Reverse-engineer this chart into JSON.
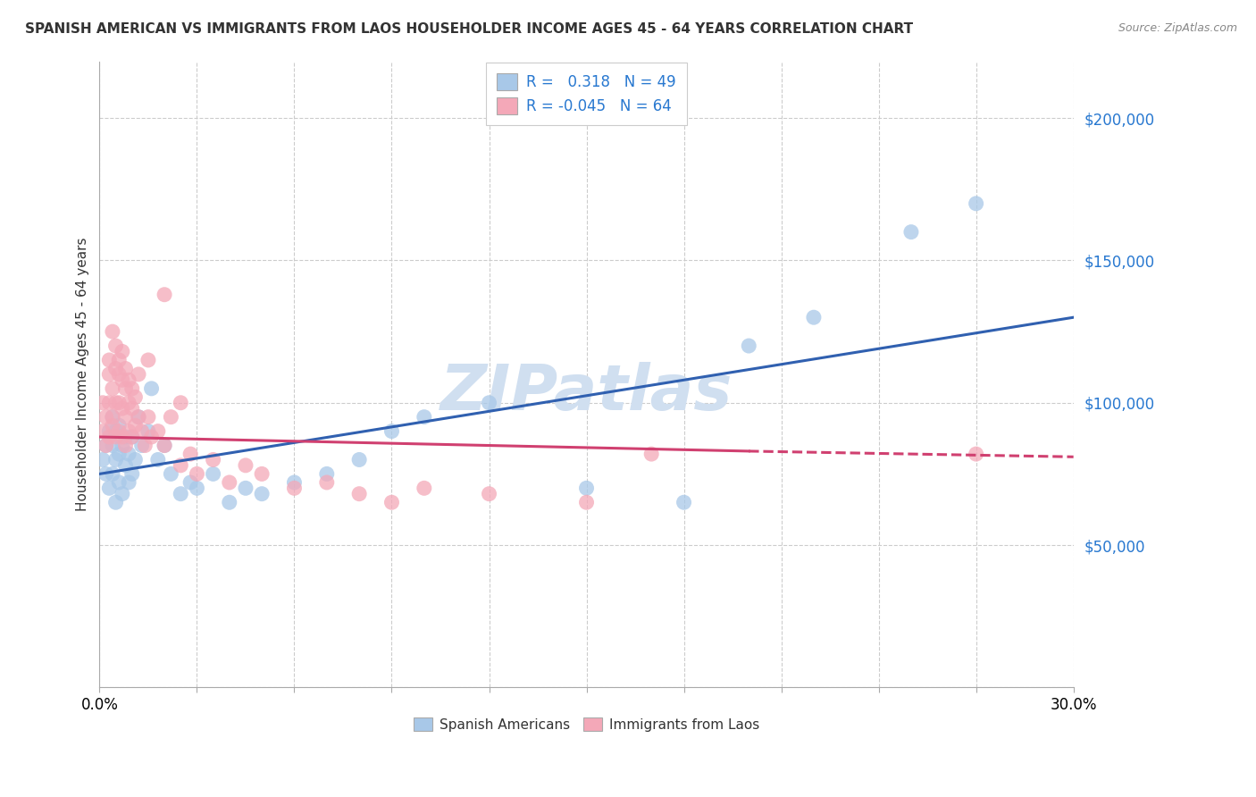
{
  "title": "SPANISH AMERICAN VS IMMIGRANTS FROM LAOS HOUSEHOLDER INCOME AGES 45 - 64 YEARS CORRELATION CHART",
  "source_text": "Source: ZipAtlas.com",
  "ylabel": "Householder Income Ages 45 - 64 years",
  "xlim": [
    0.0,
    0.3
  ],
  "ylim": [
    0,
    220000
  ],
  "yticks": [
    0,
    50000,
    100000,
    150000,
    200000
  ],
  "blue_R": 0.318,
  "blue_N": 49,
  "pink_R": -0.045,
  "pink_N": 64,
  "blue_color": "#a8c8e8",
  "pink_color": "#f4a8b8",
  "blue_line_color": "#3060b0",
  "pink_line_color": "#d04070",
  "watermark_color": "#d0dff0",
  "blue_scatter_x": [
    0.001,
    0.002,
    0.002,
    0.003,
    0.003,
    0.004,
    0.004,
    0.004,
    0.005,
    0.005,
    0.005,
    0.006,
    0.006,
    0.006,
    0.007,
    0.007,
    0.008,
    0.008,
    0.009,
    0.009,
    0.01,
    0.01,
    0.011,
    0.012,
    0.013,
    0.015,
    0.016,
    0.018,
    0.02,
    0.022,
    0.025,
    0.028,
    0.03,
    0.035,
    0.04,
    0.045,
    0.05,
    0.06,
    0.07,
    0.08,
    0.09,
    0.1,
    0.12,
    0.15,
    0.18,
    0.2,
    0.22,
    0.25,
    0.27
  ],
  "blue_scatter_y": [
    80000,
    75000,
    85000,
    70000,
    90000,
    75000,
    85000,
    95000,
    65000,
    80000,
    90000,
    72000,
    82000,
    92000,
    68000,
    85000,
    78000,
    88000,
    72000,
    82000,
    75000,
    88000,
    80000,
    95000,
    85000,
    90000,
    105000,
    80000,
    85000,
    75000,
    68000,
    72000,
    70000,
    75000,
    65000,
    70000,
    68000,
    72000,
    75000,
    80000,
    90000,
    95000,
    100000,
    70000,
    65000,
    120000,
    130000,
    160000,
    170000
  ],
  "pink_scatter_x": [
    0.001,
    0.001,
    0.002,
    0.002,
    0.003,
    0.003,
    0.003,
    0.004,
    0.004,
    0.004,
    0.005,
    0.005,
    0.005,
    0.006,
    0.006,
    0.006,
    0.007,
    0.007,
    0.007,
    0.008,
    0.008,
    0.008,
    0.009,
    0.009,
    0.01,
    0.01,
    0.011,
    0.011,
    0.012,
    0.013,
    0.014,
    0.015,
    0.016,
    0.018,
    0.02,
    0.022,
    0.025,
    0.028,
    0.03,
    0.035,
    0.04,
    0.045,
    0.05,
    0.06,
    0.07,
    0.08,
    0.09,
    0.1,
    0.12,
    0.15,
    0.003,
    0.004,
    0.005,
    0.006,
    0.007,
    0.008,
    0.009,
    0.01,
    0.012,
    0.015,
    0.02,
    0.025,
    0.17,
    0.27
  ],
  "pink_scatter_y": [
    100000,
    90000,
    95000,
    85000,
    88000,
    100000,
    110000,
    92000,
    105000,
    95000,
    88000,
    100000,
    112000,
    90000,
    100000,
    110000,
    88000,
    98000,
    108000,
    85000,
    95000,
    105000,
    90000,
    100000,
    88000,
    98000,
    92000,
    102000,
    95000,
    90000,
    85000,
    95000,
    88000,
    90000,
    85000,
    95000,
    78000,
    82000,
    75000,
    80000,
    72000,
    78000,
    75000,
    70000,
    72000,
    68000,
    65000,
    70000,
    68000,
    65000,
    115000,
    125000,
    120000,
    115000,
    118000,
    112000,
    108000,
    105000,
    110000,
    115000,
    138000,
    100000,
    82000,
    82000
  ],
  "blue_line_x0": 0.0,
  "blue_line_y0": 75000,
  "blue_line_x1": 0.3,
  "blue_line_y1": 130000,
  "pink_line_solid_x0": 0.0,
  "pink_line_solid_y0": 88000,
  "pink_line_solid_x1": 0.2,
  "pink_line_solid_y1": 83000,
  "pink_line_dash_x0": 0.2,
  "pink_line_dash_y0": 83000,
  "pink_line_dash_x1": 0.3,
  "pink_line_dash_y1": 81000
}
